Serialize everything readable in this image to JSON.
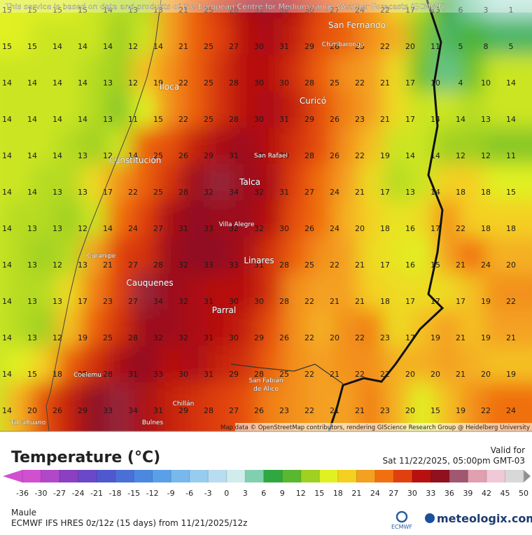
{
  "header": {
    "notice": "This service is based on data and products of the European Centre for Medium-range Weather Forecasts (ECMWF)"
  },
  "map": {
    "grid": [
      [
        15,
        15,
        15,
        15,
        14,
        13,
        13,
        21,
        25,
        28,
        31,
        32,
        30,
        27,
        24,
        22,
        17,
        13,
        6,
        3,
        1
      ],
      [
        15,
        15,
        14,
        14,
        14,
        12,
        14,
        21,
        25,
        27,
        30,
        31,
        29,
        26,
        25,
        22,
        20,
        11,
        5,
        8,
        5
      ],
      [
        14,
        14,
        14,
        14,
        13,
        12,
        19,
        22,
        25,
        28,
        30,
        30,
        28,
        25,
        22,
        21,
        17,
        10,
        4,
        10,
        14
      ],
      [
        14,
        14,
        14,
        14,
        13,
        11,
        15,
        22,
        25,
        28,
        30,
        31,
        29,
        26,
        23,
        21,
        17,
        14,
        14,
        13,
        14
      ],
      [
        14,
        14,
        14,
        13,
        12,
        14,
        25,
        26,
        29,
        31,
        32,
        30,
        28,
        26,
        22,
        19,
        14,
        14,
        12,
        12,
        11
      ],
      [
        14,
        14,
        13,
        13,
        17,
        22,
        25,
        28,
        32,
        34,
        32,
        31,
        27,
        24,
        21,
        17,
        13,
        14,
        18,
        18,
        15
      ],
      [
        14,
        13,
        13,
        12,
        14,
        24,
        27,
        31,
        33,
        32,
        32,
        30,
        26,
        24,
        20,
        18,
        16,
        17,
        22,
        18,
        18
      ],
      [
        14,
        13,
        12,
        13,
        21,
        27,
        28,
        32,
        33,
        33,
        31,
        28,
        25,
        22,
        21,
        17,
        16,
        15,
        21,
        24,
        20
      ],
      [
        14,
        13,
        13,
        17,
        23,
        27,
        34,
        32,
        31,
        30,
        30,
        28,
        22,
        21,
        21,
        18,
        17,
        17,
        17,
        19,
        22
      ],
      [
        14,
        13,
        12,
        19,
        25,
        28,
        32,
        32,
        31,
        30,
        29,
        26,
        22,
        20,
        22,
        23,
        17,
        19,
        21,
        19,
        21
      ],
      [
        14,
        15,
        18,
        25,
        28,
        31,
        33,
        30,
        31,
        29,
        28,
        25,
        22,
        21,
        22,
        22,
        20,
        20,
        21,
        20,
        19
      ],
      [
        14,
        20,
        26,
        29,
        33,
        34,
        31,
        29,
        28,
        27,
        26,
        23,
        22,
        21,
        21,
        23,
        20,
        15,
        19,
        22,
        24
      ]
    ],
    "places": [
      "San Fernando",
      "Chimbarongo",
      "Iloca",
      "Curicó",
      "San Rafael",
      "Constitución",
      "Talca",
      "Villa Alegre",
      "Curanipe",
      "Linares",
      "Cauquenes",
      "Parral",
      "Coelemu",
      "San Fabián",
      "de Alico",
      "Chillán",
      "Bulnes",
      "Talcahuano"
    ],
    "attribution": "Map data © OpenStreetMap contributors, rendering GIScience Research Group @ Heidelberg University"
  },
  "legend": {
    "title": "Temperature (°C)",
    "ticks": [
      -36,
      -30,
      -27,
      -24,
      -21,
      -18,
      -15,
      -12,
      -9,
      -6,
      -3,
      0,
      3,
      6,
      9,
      12,
      15,
      18,
      21,
      24,
      27,
      30,
      33,
      36,
      39,
      42,
      45,
      50
    ],
    "colors": [
      "#d050d0",
      "#b048c8",
      "#8a40c0",
      "#6a48c8",
      "#5058d0",
      "#4a70d8",
      "#4c88e0",
      "#5aa0e8",
      "#78b8ec",
      "#98ccee",
      "#b8dcf0",
      "#d0ecec",
      "#80d0b0",
      "#30a840",
      "#58b830",
      "#a0d020",
      "#e0f020",
      "#f4d020",
      "#f4a020",
      "#f07010",
      "#e04010",
      "#b81010",
      "#901020",
      "#a05870",
      "#e0a0b0",
      "#f0c8d8",
      "#d8d8d8",
      "#909090"
    ]
  },
  "valid": {
    "label": "Valid for",
    "time": "Sat 11/22/2025, 05:00pm GMT-03"
  },
  "footer": {
    "region": "Maule",
    "model": "ECMWF IFS HRES 0z/12z (15 days) from 11/21/2025/12z",
    "ecmwf": "ECMWF",
    "brand": "meteologix.com"
  }
}
